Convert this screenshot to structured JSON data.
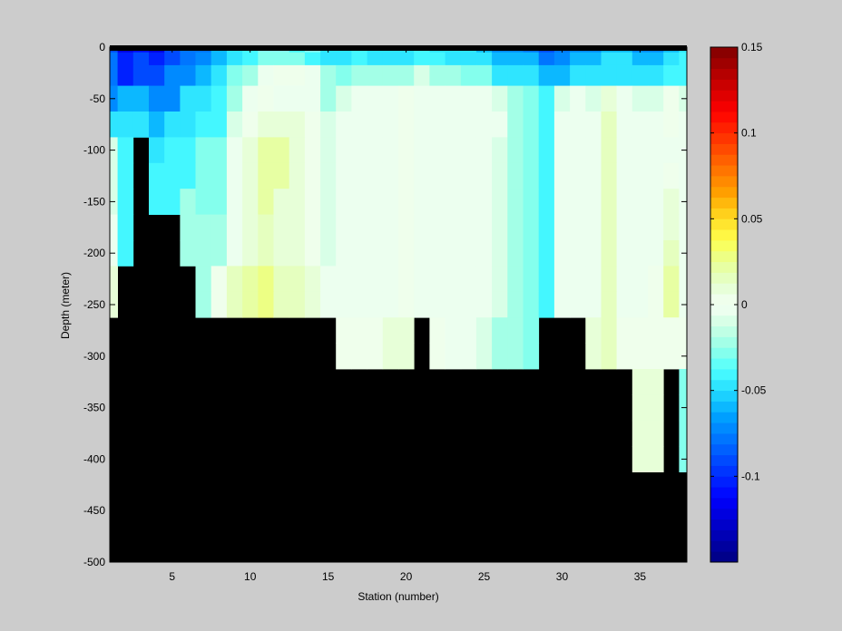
{
  "chart_data": {
    "type": "heatmap",
    "title": "",
    "xlabel": "Station (number)",
    "ylabel": "Depth (meter)",
    "xlim": [
      1,
      38
    ],
    "ylim": [
      -500,
      0
    ],
    "xticks": [
      5,
      10,
      15,
      20,
      25,
      30,
      35
    ],
    "yticks": [
      0,
      -50,
      -100,
      -150,
      -200,
      -250,
      -300,
      -350,
      -400,
      -450,
      -500
    ],
    "colorbar": {
      "clim": [
        -0.15,
        0.15
      ],
      "ticks": [
        0.15,
        0.1,
        0.05,
        0,
        -0.05,
        -0.1
      ],
      "tick_labels": [
        "0.15",
        "0.1",
        "0.05",
        "0",
        "-0.05",
        "-0.1"
      ],
      "levels": 48
    },
    "grid": false,
    "no_data_color": "#000000",
    "stations": [
      1,
      2,
      3,
      4,
      5,
      6,
      7,
      8,
      9,
      10,
      11,
      12,
      13,
      14,
      15,
      16,
      17,
      18,
      19,
      20,
      21,
      22,
      23,
      24,
      25,
      26,
      27,
      28,
      29,
      30,
      31,
      32,
      33,
      34,
      35,
      36,
      37,
      38
    ],
    "depth_rows": [
      0,
      -10,
      -25,
      -50,
      -75,
      -100,
      -125,
      -150,
      -175,
      -200,
      -225,
      -250,
      -275,
      -300,
      -325,
      -350,
      -375,
      -400
    ],
    "bottom_depth": [
      -250,
      -250,
      -200,
      -75,
      -150,
      -150,
      -250,
      -250,
      -250,
      -250,
      -250,
      -250,
      -250,
      -250,
      -250,
      -300,
      -300,
      -300,
      -300,
      -300,
      -250,
      -300,
      -300,
      -300,
      -300,
      -300,
      -300,
      -300,
      -250,
      -250,
      -250,
      -300,
      -300,
      -300,
      -400,
      -400,
      -300,
      -400
    ],
    "values": [
      [
        -0.09,
        -0.12,
        -0.11,
        -0.12,
        -0.09,
        -0.08,
        -0.08,
        -0.06,
        -0.05,
        -0.04,
        -0.03,
        -0.03,
        -0.04,
        -0.03,
        -0.05,
        -0.05,
        -0.04,
        -0.05,
        -0.05,
        -0.05,
        -0.04,
        -0.05,
        -0.05,
        -0.05,
        -0.06,
        -0.07,
        -0.07,
        -0.08,
        -0.09,
        -0.08,
        -0.07,
        -0.07,
        -0.06,
        -0.06,
        -0.07,
        -0.07,
        -0.06,
        -0.05
      ],
      [
        -0.08,
        -0.1,
        -0.09,
        -0.1,
        -0.09,
        -0.08,
        -0.07,
        -0.06,
        -0.05,
        -0.04,
        -0.03,
        -0.03,
        -0.03,
        -0.04,
        -0.05,
        -0.05,
        -0.04,
        -0.05,
        -0.05,
        -0.05,
        -0.04,
        -0.04,
        -0.05,
        -0.05,
        -0.05,
        -0.06,
        -0.06,
        -0.06,
        -0.08,
        -0.07,
        -0.06,
        -0.06,
        -0.05,
        -0.05,
        -0.06,
        -0.06,
        -0.05,
        -0.04
      ],
      [
        -0.08,
        -0.1,
        -0.09,
        -0.09,
        -0.07,
        -0.07,
        -0.06,
        -0.05,
        -0.03,
        -0.02,
        -0.005,
        0.005,
        0.005,
        -0.005,
        -0.02,
        -0.03,
        -0.02,
        -0.02,
        -0.02,
        -0.02,
        -0.01,
        -0.02,
        -0.02,
        -0.03,
        -0.03,
        -0.05,
        -0.05,
        -0.05,
        -0.06,
        -0.06,
        -0.05,
        -0.05,
        -0.05,
        -0.05,
        -0.05,
        -0.05,
        -0.04,
        -0.04
      ],
      [
        -0.07,
        -0.06,
        -0.06,
        -0.07,
        -0.07,
        -0.05,
        -0.05,
        -0.04,
        -0.02,
        -0.005,
        0.005,
        -0.003,
        -0.002,
        -0.005,
        -0.02,
        -0.01,
        -0.005,
        -0.005,
        -0.005,
        0.005,
        -0.005,
        -0.005,
        -0.005,
        -0.005,
        -0.005,
        -0.01,
        -0.02,
        -0.03,
        -0.04,
        -0.01,
        -0.005,
        -0.01,
        0.01,
        -0.005,
        -0.01,
        -0.01,
        0.005,
        -0.01
      ],
      [
        -0.05,
        -0.05,
        -0.05,
        -0.06,
        -0.05,
        -0.05,
        -0.04,
        -0.04,
        -0.01,
        0.005,
        0.01,
        0.01,
        0.01,
        0.005,
        -0.01,
        -0.005,
        -0.005,
        -0.005,
        -0.005,
        0.005,
        -0.005,
        -0.005,
        -0.005,
        -0.005,
        -0.005,
        -0.005,
        -0.02,
        -0.03,
        -0.04,
        -0.005,
        -0.005,
        -0.005,
        0.015,
        -0.005,
        -0.005,
        -0.005,
        0.005,
        -0.005
      ],
      [
        -0.01,
        -0.04,
        null,
        -0.05,
        -0.04,
        -0.04,
        -0.03,
        -0.03,
        -0.005,
        0.01,
        0.02,
        0.02,
        0.01,
        0.005,
        -0.01,
        -0.005,
        -0.005,
        -0.005,
        -0.005,
        0.005,
        -0.005,
        -0.005,
        -0.005,
        -0.005,
        -0.005,
        -0.01,
        -0.02,
        -0.03,
        -0.04,
        -0.005,
        -0.005,
        -0.005,
        0.015,
        -0.005,
        -0.005,
        -0.005,
        -0.005,
        -0.005
      ],
      [
        -0.01,
        -0.04,
        null,
        -0.04,
        -0.04,
        -0.04,
        -0.03,
        -0.03,
        -0.005,
        0.01,
        0.02,
        0.02,
        0.01,
        0.005,
        -0.01,
        -0.005,
        -0.005,
        -0.005,
        -0.005,
        0.005,
        -0.005,
        -0.005,
        -0.005,
        -0.005,
        -0.005,
        -0.01,
        -0.02,
        -0.03,
        -0.04,
        -0.005,
        -0.005,
        -0.005,
        0.015,
        -0.005,
        -0.005,
        -0.005,
        0.005,
        -0.005
      ],
      [
        -0.01,
        -0.04,
        null,
        -0.04,
        -0.04,
        -0.02,
        -0.03,
        -0.03,
        -0.005,
        0.01,
        0.02,
        0.01,
        0.01,
        0.005,
        -0.01,
        -0.005,
        -0.005,
        -0.005,
        -0.005,
        0.005,
        -0.005,
        -0.005,
        -0.005,
        -0.005,
        -0.005,
        -0.01,
        -0.02,
        -0.03,
        -0.04,
        -0.005,
        -0.005,
        -0.005,
        0.015,
        -0.005,
        -0.005,
        -0.005,
        0.01,
        -0.005
      ],
      [
        -0.005,
        -0.04,
        null,
        null,
        null,
        -0.02,
        -0.02,
        -0.02,
        -0.005,
        0.01,
        0.015,
        0.01,
        0.01,
        0.005,
        -0.01,
        -0.005,
        -0.005,
        -0.005,
        -0.005,
        0.005,
        -0.005,
        -0.005,
        -0.005,
        -0.005,
        -0.005,
        -0.01,
        -0.02,
        -0.03,
        -0.04,
        -0.005,
        -0.005,
        -0.005,
        0.015,
        -0.005,
        -0.005,
        -0.005,
        0.01,
        -0.005
      ],
      [
        -0.005,
        -0.04,
        null,
        null,
        null,
        -0.02,
        -0.02,
        -0.02,
        -0.005,
        0.01,
        0.015,
        0.01,
        0.01,
        0.005,
        -0.01,
        -0.005,
        -0.005,
        -0.005,
        -0.005,
        0.005,
        -0.005,
        -0.005,
        -0.005,
        -0.005,
        -0.005,
        -0.01,
        -0.02,
        -0.03,
        -0.04,
        -0.005,
        -0.005,
        -0.005,
        0.015,
        -0.005,
        -0.005,
        -0.005,
        0.015,
        -0.005
      ],
      [
        0.01,
        null,
        null,
        null,
        null,
        null,
        -0.02,
        0.005,
        0.015,
        0.02,
        0.025,
        0.015,
        0.015,
        0.01,
        -0.005,
        -0.005,
        -0.005,
        -0.005,
        -0.005,
        0.005,
        -0.005,
        -0.005,
        -0.005,
        -0.005,
        -0.005,
        -0.01,
        -0.02,
        -0.03,
        -0.04,
        -0.005,
        -0.005,
        -0.005,
        0.015,
        -0.005,
        -0.005,
        0.005,
        0.02,
        -0.005
      ],
      [
        0.01,
        null,
        null,
        null,
        null,
        null,
        -0.02,
        0.005,
        0.015,
        0.02,
        0.03,
        0.015,
        0.015,
        0.01,
        -0.005,
        -0.005,
        -0.005,
        -0.005,
        -0.005,
        0.005,
        -0.005,
        -0.005,
        -0.005,
        -0.005,
        -0.005,
        -0.01,
        -0.02,
        -0.03,
        -0.04,
        -0.005,
        -0.005,
        -0.005,
        0.015,
        -0.005,
        -0.005,
        0.005,
        0.02,
        -0.005
      ],
      [
        null,
        null,
        null,
        null,
        null,
        null,
        null,
        null,
        null,
        null,
        null,
        null,
        null,
        null,
        null,
        0.005,
        0.005,
        0.005,
        0.01,
        0.01,
        null,
        0.005,
        -0.005,
        -0.005,
        -0.01,
        -0.02,
        -0.02,
        -0.03,
        null,
        null,
        null,
        0.01,
        0.015,
        0.005,
        0.005,
        0.005,
        0.005,
        0.005
      ],
      [
        null,
        null,
        null,
        null,
        null,
        null,
        null,
        null,
        null,
        null,
        null,
        null,
        null,
        null,
        null,
        0.005,
        0.005,
        0.005,
        0.01,
        0.01,
        null,
        0.005,
        -0.005,
        -0.005,
        -0.01,
        -0.02,
        -0.02,
        -0.03,
        null,
        null,
        null,
        0.01,
        0.015,
        0.005,
        0.005,
        0.005,
        0.005,
        0.005
      ],
      [
        null,
        null,
        null,
        null,
        null,
        null,
        null,
        null,
        null,
        null,
        null,
        null,
        null,
        null,
        null,
        null,
        null,
        null,
        null,
        null,
        null,
        null,
        null,
        null,
        null,
        null,
        null,
        null,
        null,
        null,
        null,
        null,
        null,
        null,
        0.01,
        0.01,
        null,
        -0.03
      ],
      [
        null,
        null,
        null,
        null,
        null,
        null,
        null,
        null,
        null,
        null,
        null,
        null,
        null,
        null,
        null,
        null,
        null,
        null,
        null,
        null,
        null,
        null,
        null,
        null,
        null,
        null,
        null,
        null,
        null,
        null,
        null,
        null,
        null,
        null,
        0.01,
        0.01,
        null,
        -0.03
      ],
      [
        null,
        null,
        null,
        null,
        null,
        null,
        null,
        null,
        null,
        null,
        null,
        null,
        null,
        null,
        null,
        null,
        null,
        null,
        null,
        null,
        null,
        null,
        null,
        null,
        null,
        null,
        null,
        null,
        null,
        null,
        null,
        null,
        null,
        null,
        0.01,
        0.01,
        null,
        -0.03
      ],
      [
        null,
        null,
        null,
        null,
        null,
        null,
        null,
        null,
        null,
        null,
        null,
        null,
        null,
        null,
        null,
        null,
        null,
        null,
        null,
        null,
        null,
        null,
        null,
        null,
        null,
        null,
        null,
        null,
        null,
        null,
        null,
        null,
        null,
        null,
        0.01,
        0.01,
        null,
        -0.03
      ]
    ]
  }
}
